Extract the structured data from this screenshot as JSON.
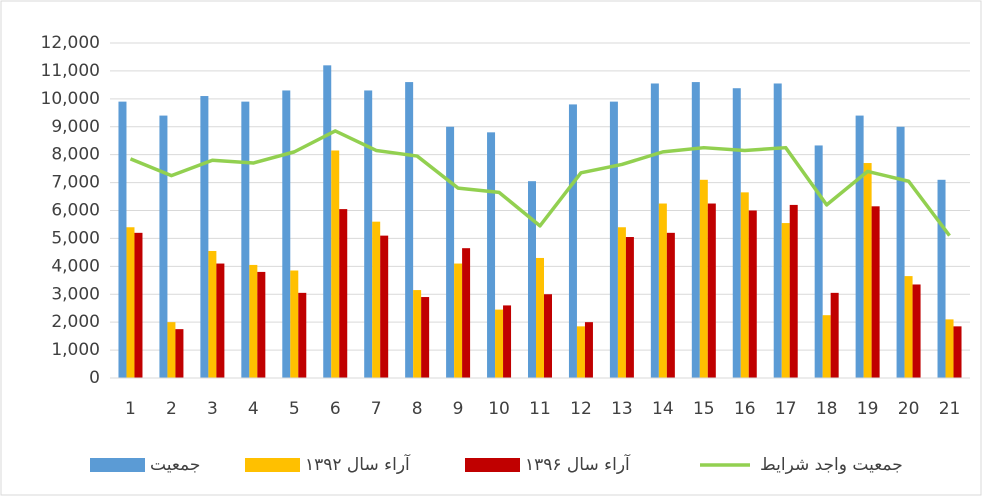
{
  "chart_data": {
    "type": "bar",
    "categories": [
      "1",
      "2",
      "3",
      "4",
      "5",
      "6",
      "7",
      "8",
      "9",
      "10",
      "11",
      "12",
      "13",
      "14",
      "15",
      "16",
      "17",
      "18",
      "19",
      "20",
      "21"
    ],
    "series": [
      {
        "name": "جمعیت",
        "color": "#5b9bd5",
        "type": "bar",
        "values": [
          9900,
          9400,
          10100,
          9900,
          10300,
          11200,
          10300,
          10600,
          9000,
          8800,
          7050,
          9800,
          9900,
          10550,
          10600,
          10380,
          10550,
          8330,
          9400,
          9000,
          7100
        ]
      },
      {
        "name": "آراء سال ۱۳۹۲",
        "color": "#ffc000",
        "type": "bar",
        "values": [
          5400,
          2000,
          4550,
          4050,
          3850,
          8150,
          5600,
          3150,
          4100,
          2450,
          4300,
          1850,
          5400,
          6250,
          7100,
          6650,
          5550,
          2250,
          7700,
          3650,
          2100
        ]
      },
      {
        "name": "آراء سال ۱۳۹۶",
        "color": "#c00000",
        "type": "bar",
        "values": [
          5200,
          1750,
          4100,
          3800,
          3050,
          6050,
          5100,
          2900,
          4650,
          2600,
          3000,
          2000,
          5050,
          5200,
          6250,
          6000,
          6200,
          3050,
          6150,
          3350,
          1850
        ]
      },
      {
        "name": "جمعیت واجد شرایط",
        "color": "#92d050",
        "type": "line",
        "values": [
          7850,
          7250,
          7800,
          7700,
          8100,
          8850,
          8150,
          7950,
          6800,
          6650,
          5450,
          7350,
          7650,
          8100,
          8250,
          8150,
          8250,
          6200,
          7400,
          7050,
          5100
        ]
      }
    ],
    "ylim": [
      0,
      12000
    ],
    "yticks": [
      0,
      {
        "value": 1000,
        "label": "1,000"
      },
      {
        "value": 2000,
        "label": "2,000"
      },
      {
        "value": 3000,
        "label": "3,000"
      },
      {
        "value": 4000,
        "label": "4,000"
      },
      {
        "value": 5000,
        "label": "5,000"
      },
      {
        "value": 6000,
        "label": "6,000"
      },
      {
        "value": 7000,
        "label": "7,000"
      },
      {
        "value": 8000,
        "label": "8,000"
      },
      {
        "value": 9000,
        "label": "9,000"
      },
      {
        "value": 10000,
        "label": "10,000"
      },
      {
        "value": 11000,
        "label": "11,000"
      },
      {
        "value": 12000,
        "label": "12,000"
      }
    ],
    "grid": true,
    "legend": "bottom"
  }
}
